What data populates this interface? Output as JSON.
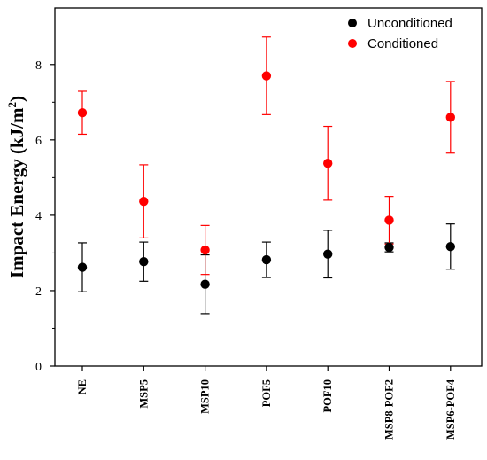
{
  "chart_data": {
    "type": "scatter",
    "categories": [
      "NE",
      "MSP5",
      "MSP10",
      "POF5",
      "POF10",
      "MSP8-POF2",
      "MSP6-POF4"
    ],
    "ylabel_main": "Impact Energy (kJ/m",
    "ylabel_sup": "2",
    "ylabel_end": ")",
    "ylim": [
      0,
      9.5
    ],
    "yticks": [
      "0",
      "2",
      "4",
      "6",
      "8"
    ],
    "legend_position": "top-right",
    "series": [
      {
        "name": "Unconditioned",
        "color": "#000000",
        "values": [
          2.62,
          2.77,
          2.17,
          2.82,
          2.97,
          3.15,
          3.17
        ],
        "errors": [
          0.65,
          0.52,
          0.78,
          0.47,
          0.63,
          0.12,
          0.6
        ]
      },
      {
        "name": "Conditioned",
        "color": "#ff0000",
        "values": [
          6.72,
          4.37,
          3.08,
          7.7,
          5.38,
          3.87,
          6.6
        ],
        "errors": [
          0.57,
          0.97,
          0.65,
          1.03,
          0.98,
          0.63,
          0.95
        ]
      }
    ]
  }
}
